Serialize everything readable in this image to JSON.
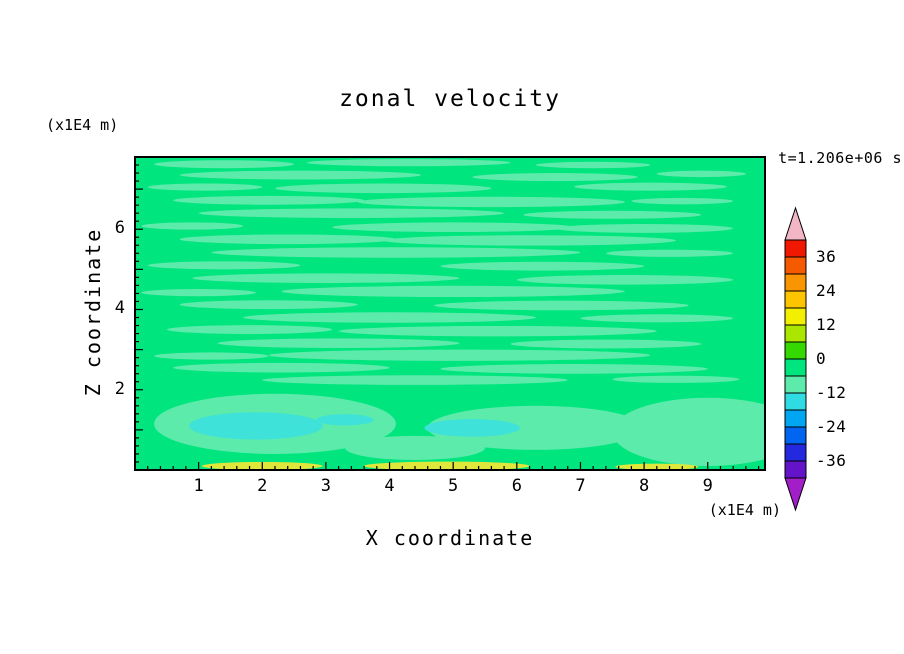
{
  "title": "zonal velocity",
  "time_label": "t=1.206e+06 s",
  "axes": {
    "x_label": "X coordinate",
    "z_label": "Z coordinate",
    "x_unit": "(x1E4 m)",
    "z_unit": "(x1E4 m)"
  },
  "chart_data": {
    "type": "filled_contour",
    "title": "zonal velocity",
    "xlabel": "X coordinate",
    "ylabel": "Z coordinate",
    "x_unit": "(x1E4 m)",
    "z_unit": "(x1E4 m)",
    "time_annotation": "t=1.206e+06 s",
    "x_range": [
      0,
      9.9
    ],
    "z_range": [
      0,
      7.8
    ],
    "x_ticks": [
      1,
      2,
      3,
      4,
      5,
      6,
      7,
      8,
      9
    ],
    "z_major_ticks": [
      1,
      2,
      3,
      4,
      5,
      6,
      7
    ],
    "z_ticks": [
      2,
      4,
      6
    ],
    "minor_tick_step": 0.2,
    "level_step": 6,
    "field_summary": "Zonal velocity field mostly within -12..+6 bands (greens); cyan patches near -12..-18 along the lower boundary; thin +6..+12 (yellow) streaks at the bottom edge.",
    "palette": {
      "background": "#ffffff",
      "field_base": "#00e57e",
      "streak": "#5cebab",
      "cyan": "#3fe2d8",
      "yellow": "#dfe73a",
      "frame": "#000000",
      "text": "#000000"
    },
    "colorbar": {
      "tick_values": [
        36,
        24,
        12,
        0,
        -12,
        -24,
        -36
      ],
      "over_color": "#f2b6c6",
      "under_color": "#a21ec8",
      "segments": [
        {
          "from": 36,
          "to": 42,
          "color": "#f01800"
        },
        {
          "from": 30,
          "to": 36,
          "color": "#f55a00"
        },
        {
          "from": 24,
          "to": 30,
          "color": "#f99500"
        },
        {
          "from": 18,
          "to": 24,
          "color": "#fcc500"
        },
        {
          "from": 12,
          "to": 18,
          "color": "#f3ef00"
        },
        {
          "from": 6,
          "to": 12,
          "color": "#abe600"
        },
        {
          "from": 0,
          "to": 6,
          "color": "#35d800"
        },
        {
          "from": -6,
          "to": 0,
          "color": "#00e57e"
        },
        {
          "from": -12,
          "to": -6,
          "color": "#5cebab"
        },
        {
          "from": -18,
          "to": -12,
          "color": "#2fdce4"
        },
        {
          "from": -24,
          "to": -18,
          "color": "#00a6f2"
        },
        {
          "from": -30,
          "to": -24,
          "color": "#0066f2"
        },
        {
          "from": -36,
          "to": -30,
          "color": "#2428de"
        },
        {
          "from": -42,
          "to": -36,
          "color": "#6414c8"
        }
      ]
    },
    "field_blobs": {
      "streak": [
        [
          1.4,
          7.62,
          1.1,
          0.1
        ],
        [
          4.3,
          7.66,
          1.6,
          0.09
        ],
        [
          7.2,
          7.6,
          0.9,
          0.08
        ],
        [
          2.6,
          7.35,
          1.9,
          0.11
        ],
        [
          6.6,
          7.3,
          1.3,
          0.1
        ],
        [
          8.9,
          7.38,
          0.7,
          0.08
        ],
        [
          1.1,
          7.05,
          0.9,
          0.09
        ],
        [
          3.9,
          7.02,
          1.7,
          0.12
        ],
        [
          8.1,
          7.06,
          1.2,
          0.1
        ],
        [
          2.1,
          6.72,
          1.5,
          0.11
        ],
        [
          5.6,
          6.68,
          2.1,
          0.13
        ],
        [
          8.6,
          6.7,
          0.8,
          0.08
        ],
        [
          3.4,
          6.4,
          2.4,
          0.12
        ],
        [
          7.5,
          6.36,
          1.4,
          0.1
        ],
        [
          0.9,
          6.08,
          0.8,
          0.09
        ],
        [
          5.0,
          6.05,
          1.9,
          0.12
        ],
        [
          8.0,
          6.02,
          1.4,
          0.11
        ],
        [
          2.4,
          5.75,
          1.7,
          0.12
        ],
        [
          6.2,
          5.72,
          2.3,
          0.13
        ],
        [
          4.1,
          5.42,
          2.9,
          0.13
        ],
        [
          8.4,
          5.4,
          1.0,
          0.09
        ],
        [
          1.4,
          5.1,
          1.2,
          0.1
        ],
        [
          6.4,
          5.08,
          1.6,
          0.11
        ],
        [
          3.0,
          4.78,
          2.1,
          0.12
        ],
        [
          7.7,
          4.74,
          1.7,
          0.12
        ],
        [
          5.0,
          4.45,
          2.7,
          0.14
        ],
        [
          1.0,
          4.42,
          0.9,
          0.09
        ],
        [
          2.1,
          4.12,
          1.4,
          0.11
        ],
        [
          6.7,
          4.1,
          2.0,
          0.12
        ],
        [
          4.0,
          3.8,
          2.3,
          0.13
        ],
        [
          8.2,
          3.78,
          1.2,
          0.1
        ],
        [
          1.8,
          3.5,
          1.3,
          0.11
        ],
        [
          5.7,
          3.46,
          2.5,
          0.13
        ],
        [
          3.2,
          3.16,
          1.9,
          0.12
        ],
        [
          7.4,
          3.14,
          1.5,
          0.11
        ],
        [
          5.1,
          2.86,
          3.0,
          0.14
        ],
        [
          1.2,
          2.84,
          0.9,
          0.09
        ],
        [
          2.3,
          2.55,
          1.7,
          0.12
        ],
        [
          6.9,
          2.52,
          2.1,
          0.12
        ],
        [
          4.4,
          2.24,
          2.4,
          0.12
        ],
        [
          8.5,
          2.26,
          1.0,
          0.09
        ],
        [
          2.2,
          1.15,
          1.9,
          0.75
        ],
        [
          6.3,
          1.05,
          1.7,
          0.55
        ],
        [
          9.0,
          0.95,
          1.5,
          0.85
        ],
        [
          4.4,
          0.55,
          1.1,
          0.3
        ]
      ],
      "cyan": [
        [
          1.9,
          1.1,
          1.05,
          0.34
        ],
        [
          3.3,
          1.25,
          0.45,
          0.14
        ],
        [
          5.3,
          1.05,
          0.75,
          0.22
        ]
      ],
      "yellow": [
        [
          2.0,
          0.1,
          0.95,
          0.1
        ],
        [
          4.9,
          0.1,
          1.3,
          0.11
        ],
        [
          8.2,
          0.08,
          0.65,
          0.08
        ]
      ]
    }
  }
}
